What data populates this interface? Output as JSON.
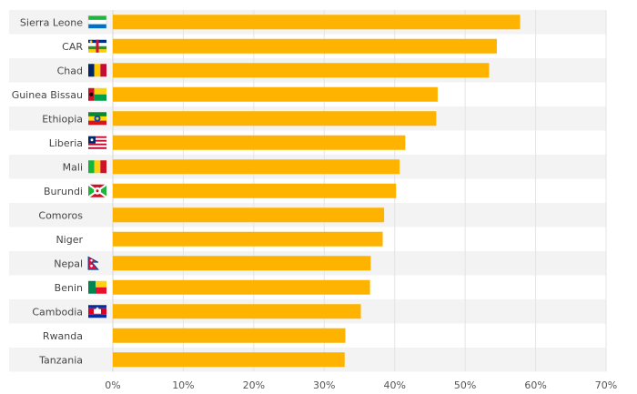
{
  "chart_data": {
    "type": "bar",
    "orientation": "horizontal",
    "title": "",
    "xlabel": "",
    "ylabel": "",
    "categories": [
      "Sierra Leone",
      "CAR",
      "Chad",
      "Guinea Bissau",
      "Ethiopia",
      "Liberia",
      "Mali",
      "Burundi",
      "Comoros",
      "Niger",
      "Nepal",
      "Benin",
      "Cambodia",
      "Rwanda",
      "Tanzania"
    ],
    "values": [
      57.8,
      54.5,
      53.4,
      46.1,
      45.9,
      41.5,
      40.7,
      40.2,
      38.5,
      38.3,
      36.6,
      36.5,
      35.2,
      33.0,
      32.9
    ],
    "xlim": [
      0,
      70
    ],
    "ticks": [
      0,
      10,
      20,
      30,
      40,
      50,
      60,
      70
    ],
    "tick_labels": [
      "0%",
      "10%",
      "20%",
      "30%",
      "40%",
      "50%",
      "60%",
      "70%"
    ],
    "bar_color": "#FDB300",
    "row_stripe_color": "#F3F3F3",
    "flags": [
      "sierra-leone-flag-icon",
      "car-flag-icon",
      "chad-flag-icon",
      "guinea-bissau-flag-icon",
      "ethiopia-flag-icon",
      "liberia-flag-icon",
      "mali-flag-icon",
      "burundi-flag-icon",
      "",
      "",
      "nepal-flag-icon",
      "benin-flag-icon",
      "cambodia-flag-icon",
      "",
      ""
    ]
  }
}
